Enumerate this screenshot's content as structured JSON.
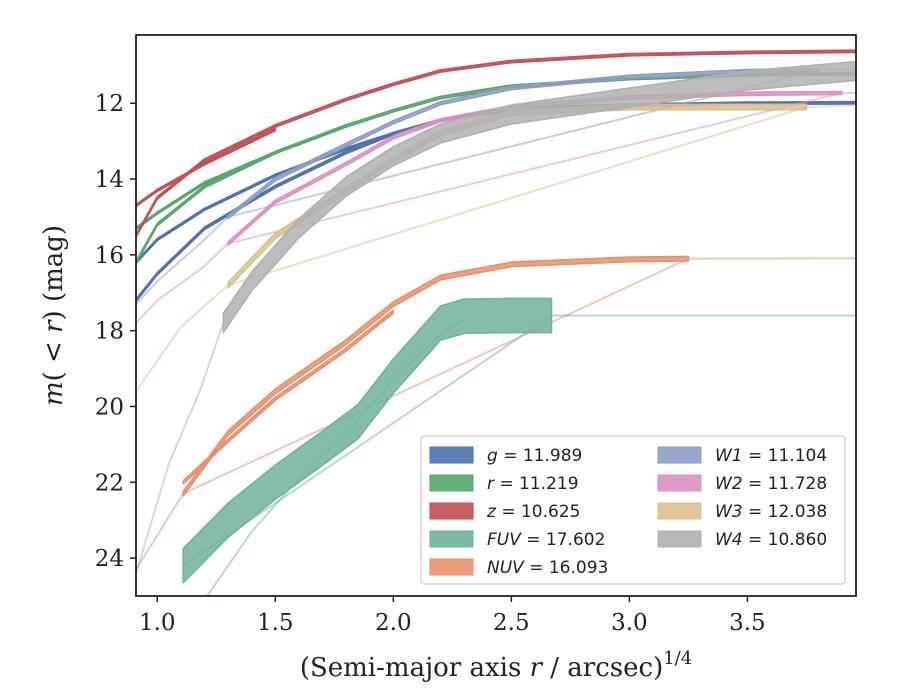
{
  "chart_data": {
    "type": "line",
    "title": "",
    "xlabel": "(Semi-major axis r / arcsec)^{1/4}",
    "ylabel": "m(< r) (mag)",
    "xlim": [
      0.91,
      3.96
    ],
    "ylim": [
      25.0,
      10.2
    ],
    "y_inverted": true,
    "xticks": [
      "1.0",
      "1.5",
      "2.0",
      "2.5",
      "3.0",
      "3.5"
    ],
    "yticks": [
      "12",
      "14",
      "16",
      "18",
      "20",
      "22",
      "24"
    ],
    "grid": false,
    "legend_position": "lower-right",
    "legend": [
      {
        "name": "g",
        "value": "11.989",
        "color": "#4c72b0"
      },
      {
        "name": "r",
        "value": "11.219",
        "color": "#55a868"
      },
      {
        "name": "z",
        "value": "10.625",
        "color": "#c44e52"
      },
      {
        "name": "FUV",
        "value": "17.602",
        "color": "#6fb39a"
      },
      {
        "name": "NUV",
        "value": "16.093",
        "color": "#e8906c"
      },
      {
        "name": "W1",
        "value": "11.104",
        "color": "#8c9cc8"
      },
      {
        "name": "W2",
        "value": "11.728",
        "color": "#dc8fc4"
      },
      {
        "name": "W3",
        "value": "12.038",
        "color": "#dcbe8c"
      },
      {
        "name": "W4",
        "value": "10.860",
        "color": "#b0b0b0"
      }
    ],
    "series": [
      {
        "name": "g",
        "color": "#4c72b0",
        "band_width": 0.06,
        "dark": [
          [
            0.91,
            17.2
          ],
          [
            1.0,
            16.5
          ],
          [
            1.2,
            15.3
          ],
          [
            1.5,
            14.2
          ],
          [
            1.8,
            13.3
          ],
          [
            2.0,
            12.8
          ],
          [
            2.2,
            12.45
          ],
          [
            2.5,
            12.15
          ],
          [
            3.0,
            12.05
          ],
          [
            3.5,
            12.0
          ],
          [
            3.96,
            11.99
          ]
        ],
        "faint": [
          [
            0.91,
            17.2
          ],
          [
            1.0,
            16.5
          ],
          [
            1.2,
            15.3
          ],
          [
            1.5,
            14.2
          ],
          [
            1.8,
            13.3
          ],
          [
            2.0,
            12.8
          ],
          [
            2.2,
            12.45
          ],
          [
            2.5,
            12.15
          ],
          [
            3.0,
            12.05
          ],
          [
            3.5,
            12.0
          ],
          [
            3.96,
            11.99
          ]
        ]
      },
      {
        "name": "g (inner)",
        "color": "#4c72b0",
        "band_width": 0.05,
        "dark": [
          [
            0.91,
            16.2
          ],
          [
            1.0,
            15.6
          ],
          [
            1.2,
            14.8
          ],
          [
            1.5,
            13.9
          ],
          [
            1.8,
            13.2
          ],
          [
            2.0,
            12.8
          ]
        ],
        "faint": []
      },
      {
        "name": "r",
        "color": "#55a868",
        "band_width": 0.06,
        "dark": [
          [
            0.91,
            16.2
          ],
          [
            1.0,
            15.2
          ],
          [
            1.2,
            14.2
          ],
          [
            1.5,
            13.3
          ],
          [
            1.8,
            12.6
          ],
          [
            2.0,
            12.2
          ],
          [
            2.2,
            11.85
          ],
          [
            2.5,
            11.55
          ],
          [
            3.0,
            11.35
          ],
          [
            3.5,
            11.25
          ],
          [
            3.96,
            11.22
          ]
        ],
        "faint": []
      },
      {
        "name": "r (inner)",
        "color": "#55a868",
        "band_width": 0.05,
        "dark": [
          [
            0.91,
            15.3
          ],
          [
            1.0,
            14.9
          ],
          [
            1.2,
            14.1
          ],
          [
            1.5,
            13.3
          ],
          [
            1.8,
            12.6
          ]
        ],
        "faint": []
      },
      {
        "name": "z",
        "color": "#c44e52",
        "band_width": 0.06,
        "dark": [
          [
            0.91,
            15.5
          ],
          [
            1.0,
            14.5
          ],
          [
            1.2,
            13.5
          ],
          [
            1.5,
            12.6
          ],
          [
            1.8,
            11.9
          ],
          [
            2.0,
            11.5
          ],
          [
            2.2,
            11.15
          ],
          [
            2.5,
            10.9
          ],
          [
            3.0,
            10.72
          ],
          [
            3.5,
            10.66
          ],
          [
            3.96,
            10.63
          ]
        ],
        "faint": []
      },
      {
        "name": "z (inner)",
        "color": "#c44e52",
        "band_width": 0.05,
        "dark": [
          [
            0.91,
            14.7
          ],
          [
            1.0,
            14.3
          ],
          [
            1.2,
            13.6
          ],
          [
            1.5,
            12.7
          ]
        ],
        "faint": []
      },
      {
        "name": "W1",
        "color": "#8c9cc8",
        "band_width": 0.08,
        "dark": [
          [
            1.3,
            15.0
          ],
          [
            1.5,
            14.0
          ],
          [
            1.8,
            13.1
          ],
          [
            2.0,
            12.5
          ],
          [
            2.2,
            12.0
          ],
          [
            2.5,
            11.6
          ],
          [
            3.0,
            11.3
          ],
          [
            3.5,
            11.15
          ],
          [
            3.8,
            11.12
          ]
        ],
        "faint": [
          [
            0.91,
            17.3
          ],
          [
            1.0,
            16.7
          ],
          [
            1.2,
            15.6
          ],
          [
            1.3,
            15.0
          ],
          [
            3.8,
            11.12
          ],
          [
            3.96,
            11.1
          ]
        ]
      },
      {
        "name": "W2",
        "color": "#dc8fc4",
        "band_width": 0.08,
        "dark": [
          [
            1.3,
            15.7
          ],
          [
            1.5,
            14.6
          ],
          [
            1.8,
            13.6
          ],
          [
            2.0,
            12.9
          ],
          [
            2.2,
            12.45
          ],
          [
            2.5,
            12.1
          ],
          [
            3.0,
            11.85
          ],
          [
            3.5,
            11.75
          ],
          [
            3.9,
            11.73
          ]
        ],
        "faint": [
          [
            0.91,
            17.8
          ],
          [
            1.0,
            17.2
          ],
          [
            1.2,
            16.3
          ],
          [
            1.3,
            15.7
          ],
          [
            3.9,
            11.73
          ],
          [
            3.96,
            11.73
          ]
        ]
      },
      {
        "name": "W3",
        "color": "#dcbe8c",
        "band_width": 0.14,
        "dark": [
          [
            1.3,
            16.8
          ],
          [
            1.5,
            15.5
          ],
          [
            1.8,
            14.3
          ],
          [
            2.0,
            13.5
          ],
          [
            2.2,
            12.8
          ],
          [
            2.5,
            12.25
          ],
          [
            3.0,
            12.1
          ],
          [
            3.5,
            12.1
          ],
          [
            3.75,
            12.1
          ]
        ],
        "faint": [
          [
            0.91,
            19.6
          ],
          [
            1.1,
            17.9
          ],
          [
            1.3,
            16.8
          ],
          [
            3.75,
            12.1
          ],
          [
            3.96,
            12.05
          ]
        ]
      },
      {
        "name": "W4",
        "color": "#b0b0b0",
        "band_width": 0.5,
        "dark": [
          [
            1.28,
            17.8
          ],
          [
            1.4,
            16.7
          ],
          [
            1.6,
            15.3
          ],
          [
            1.8,
            14.2
          ],
          [
            2.0,
            13.4
          ],
          [
            2.2,
            12.8
          ],
          [
            2.5,
            12.3
          ],
          [
            3.0,
            11.85
          ],
          [
            3.5,
            11.4
          ],
          [
            3.96,
            11.15
          ]
        ],
        "faint": [
          [
            0.91,
            24.4
          ],
          [
            1.05,
            21.5
          ],
          [
            1.18,
            19.6
          ],
          [
            1.28,
            17.8
          ]
        ]
      },
      {
        "name": "NUV",
        "color": "#e8906c",
        "band_width": 0.12,
        "dark": [
          [
            1.11,
            22.3
          ],
          [
            1.3,
            20.7
          ],
          [
            1.5,
            19.6
          ],
          [
            1.8,
            18.3
          ],
          [
            2.0,
            17.3
          ],
          [
            2.2,
            16.6
          ],
          [
            2.5,
            16.25
          ],
          [
            3.0,
            16.12
          ],
          [
            3.25,
            16.1
          ]
        ],
        "faint": [
          [
            0.91,
            24.3
          ],
          [
            1.11,
            22.3
          ],
          [
            3.25,
            16.1
          ],
          [
            3.96,
            16.09
          ]
        ]
      },
      {
        "name": "NUV (inner)",
        "color": "#e8906c",
        "band_width": 0.08,
        "dark": [
          [
            1.11,
            22.0
          ],
          [
            1.3,
            20.9
          ],
          [
            1.5,
            19.8
          ],
          [
            1.8,
            18.5
          ],
          [
            2.0,
            17.5
          ]
        ],
        "faint": []
      },
      {
        "name": "FUV",
        "color": "#6fb39a",
        "band_width": 0.9,
        "dark": [
          [
            1.11,
            24.2
          ],
          [
            1.3,
            23.0
          ],
          [
            1.5,
            22.0
          ],
          [
            1.7,
            21.1
          ],
          [
            1.85,
            20.4
          ],
          [
            2.0,
            19.2
          ],
          [
            2.1,
            18.5
          ],
          [
            2.2,
            17.8
          ],
          [
            2.3,
            17.62
          ],
          [
            2.5,
            17.6
          ],
          [
            2.67,
            17.6
          ]
        ],
        "faint": [
          [
            1.11,
            24.2
          ],
          [
            2.67,
            17.6
          ],
          [
            3.96,
            17.6
          ]
        ]
      },
      {
        "name": "FUV (outer)",
        "color": "#6fb39a",
        "band_width": 0.04,
        "dark": [],
        "faint": [
          [
            1.2,
            25.1
          ],
          [
            1.4,
            23.3
          ],
          [
            1.6,
            21.9
          ],
          [
            1.8,
            20.7
          ],
          [
            2.0,
            19.3
          ],
          [
            2.2,
            18.1
          ],
          [
            2.3,
            17.7
          ]
        ]
      }
    ]
  }
}
